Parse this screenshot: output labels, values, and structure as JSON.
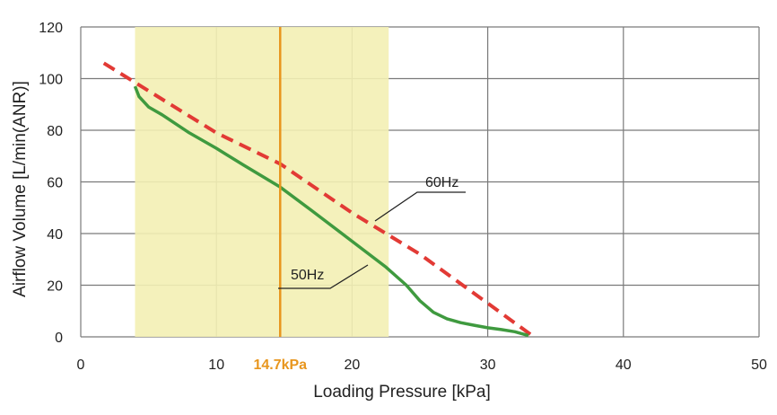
{
  "chart_data": {
    "type": "line",
    "title": "",
    "xlabel": "Loading Pressure [kPa]",
    "ylabel": "Airflow Volume [L/min(ANR)]",
    "xlim": [
      0,
      50
    ],
    "ylim": [
      0,
      120
    ],
    "xticks": [
      0,
      10,
      20,
      30,
      40,
      50
    ],
    "yticks": [
      0,
      20,
      40,
      60,
      80,
      100,
      120
    ],
    "grid": true,
    "shaded_region": {
      "x": [
        4,
        22.7
      ],
      "color": "#f3f0b4"
    },
    "reference_line": {
      "x": 14.7,
      "label": "14.7kPa",
      "color": "#e8961e"
    },
    "series": [
      {
        "name": "60Hz",
        "style": "dashed",
        "color": "#e23a35",
        "x": [
          1.7,
          4,
          10,
          14.7,
          20,
          25,
          30,
          33.4
        ],
        "y": [
          106,
          98.5,
          79,
          67,
          48,
          32,
          13,
          0
        ]
      },
      {
        "name": "50Hz",
        "style": "solid",
        "color": "#3f9a3f",
        "x": [
          4,
          4.3,
          5,
          6,
          8,
          10,
          12,
          14.7,
          17,
          20,
          22.5,
          24,
          25,
          26,
          27,
          28,
          29,
          30,
          31,
          32,
          33
        ],
        "y": [
          97,
          93,
          89,
          86,
          79,
          73,
          66.5,
          58,
          49,
          37,
          27,
          20,
          14,
          9.5,
          7,
          5.5,
          4.5,
          3.5,
          2.8,
          2,
          0.5
        ]
      }
    ],
    "annotations": [
      {
        "text": "60Hz",
        "series": "60Hz"
      },
      {
        "text": "50Hz",
        "series": "50Hz"
      }
    ]
  }
}
